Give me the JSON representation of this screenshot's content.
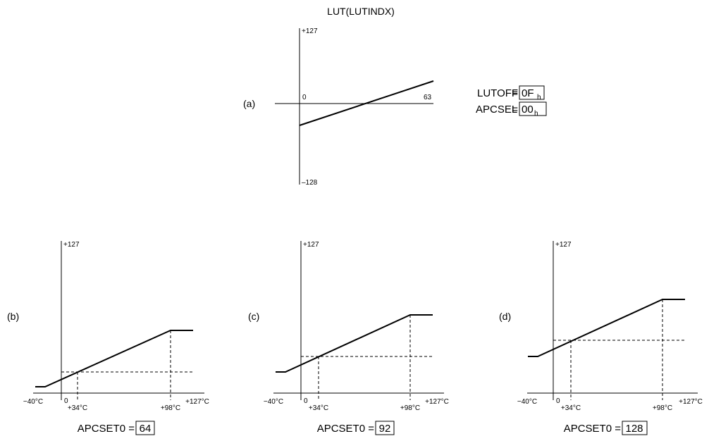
{
  "title": "LUT(LUTINDX)",
  "panel_a": {
    "label": "(a)",
    "y_top": "+127",
    "y_bottom": "–128",
    "x_left": "0",
    "x_right": "63",
    "settings": [
      {
        "name": "LUTOFF",
        "equals": "=",
        "value": "0F",
        "subscript": "h"
      },
      {
        "name": "APCSEL",
        "equals": "=",
        "value": "00",
        "subscript": "h"
      }
    ]
  },
  "panels": [
    {
      "label": "(b)",
      "y_top": "+127",
      "ticks": [
        "−40°C",
        "0",
        "+34°C",
        "+98°C",
        "+127°C"
      ],
      "caption": "APCSET0 =",
      "apcset0": "64"
    },
    {
      "label": "(c)",
      "y_top": "+127",
      "ticks": [
        "−40°C",
        "0",
        "+34°C",
        "+98°C",
        "+127°C"
      ],
      "caption": "APCSET0 =",
      "apcset0": "92"
    },
    {
      "label": "(d)",
      "y_top": "+127",
      "ticks": [
        "−40°C",
        "0",
        "+34°C",
        "+98°C",
        "+127°C"
      ],
      "caption": "APCSET0 =",
      "apcset0": "128"
    }
  ]
}
